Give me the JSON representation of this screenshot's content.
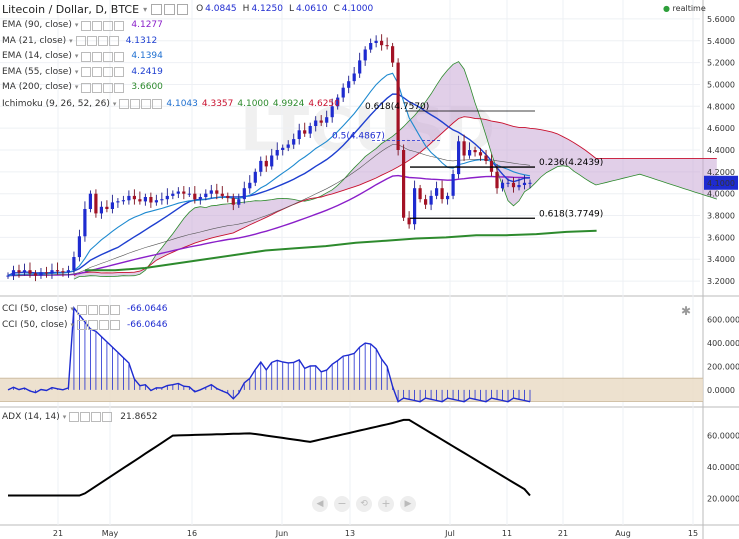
{
  "header": {
    "symbol": "Litecoin / Dollar, D, BTCE",
    "ohlc": [
      {
        "k": "O",
        "v": "4.0845"
      },
      {
        "k": "H",
        "v": "4.1250"
      },
      {
        "k": "L",
        "v": "4.0610"
      },
      {
        "k": "C",
        "v": "4.1000"
      }
    ],
    "realtime": "realtime",
    "realtime_color": "#2e9f3a"
  },
  "indicators": [
    {
      "label": "EMA (90, close)",
      "value": "4.1277",
      "color": "#8a1fc9"
    },
    {
      "label": "MA (21, close)",
      "value": "4.1312",
      "color": "#1e3fd0"
    },
    {
      "label": "EMA (14, close)",
      "value": "4.1394",
      "color": "#1e6fd0"
    },
    {
      "label": "EMA (55, close)",
      "value": "4.2419",
      "color": "#1e3fd0"
    },
    {
      "label": "MA (200, close)",
      "value": "3.6600",
      "color": "#2d8a2d"
    }
  ],
  "ichimoku": {
    "label": "Ichimoku (9, 26, 52, 26)",
    "values": [
      {
        "v": "4.1043",
        "color": "#1e6fd0"
      },
      {
        "v": "4.3357",
        "color": "#c8102e"
      },
      {
        "v": "4.1000",
        "color": "#2d8a2d"
      },
      {
        "v": "4.9924",
        "color": "#2d8a2d"
      },
      {
        "v": "4.6250",
        "color": "#c8102e"
      }
    ]
  },
  "fib_labels": [
    {
      "text": "0.618(4.7570)",
      "value": 4.757
    },
    {
      "text": "0.5(4.4867)",
      "value": 4.4867
    },
    {
      "text": "0.236(4.2439)",
      "value": 4.2439
    },
    {
      "text": "0.618(3.7749)",
      "value": 3.7749
    }
  ],
  "last_price": "4.1000",
  "cci": {
    "labels": [
      "CCI (50, close)",
      "CCI (50, close)"
    ],
    "values": [
      "-66.0646",
      "-66.0646"
    ],
    "color": "#1e2bd0"
  },
  "adx": {
    "label": "ADX (14, 14)",
    "value": "21.8652"
  },
  "x_ticks": [
    "21",
    "May",
    "16",
    "Jun",
    "13",
    "Jul",
    "11",
    "21",
    "Aug",
    "15"
  ],
  "chart_data": [
    {
      "type": "candlestick",
      "title": "Litecoin / Dollar, D, BTCE",
      "ylim": [
        3.1,
        5.7
      ],
      "y_ticks": [
        "5.6000",
        "5.4000",
        "5.2000",
        "5.0000",
        "4.8000",
        "4.6000",
        "4.4000",
        "4.2000",
        "4.0000",
        "3.8000",
        "3.6000",
        "3.4000",
        "3.2000"
      ],
      "price_close": [
        3.25,
        3.3,
        3.28,
        3.3,
        3.27,
        3.25,
        3.28,
        3.27,
        3.3,
        3.29,
        3.28,
        3.3,
        3.42,
        3.61,
        3.86,
        4.0,
        3.82,
        3.88,
        3.86,
        3.92,
        3.93,
        3.94,
        3.98,
        3.95,
        3.93,
        3.97,
        3.92,
        3.94,
        3.95,
        3.98,
        4.0,
        4.02,
        4.0,
        4.0,
        3.95,
        3.97,
        4.0,
        4.03,
        4.0,
        3.98,
        3.96,
        3.9,
        3.95,
        4.05,
        4.1,
        4.2,
        4.3,
        4.25,
        4.35,
        4.4,
        4.42,
        4.45,
        4.5,
        4.58,
        4.55,
        4.62,
        4.67,
        4.65,
        4.7,
        4.8,
        4.88,
        4.97,
        5.03,
        5.1,
        5.22,
        5.32,
        5.38,
        5.4,
        5.36,
        5.35,
        5.2,
        4.4,
        3.78,
        3.72,
        4.05,
        3.95,
        3.9,
        3.98,
        4.05,
        3.95,
        3.98,
        4.18,
        4.48,
        4.35,
        4.4,
        4.38,
        4.35,
        4.3,
        4.2,
        4.05,
        4.1,
        4.1,
        4.06,
        4.08,
        4.1,
        4.1
      ],
      "ma200": [
        3.3,
        3.3,
        3.32,
        3.36,
        3.4,
        3.44,
        3.48,
        3.5,
        3.52,
        3.55,
        3.57,
        3.59,
        3.6,
        3.62,
        3.62,
        3.63,
        3.65,
        3.66
      ],
      "fib_levels": [
        4.757,
        4.4867,
        4.2439,
        3.7749
      ]
    },
    {
      "type": "line",
      "title": "CCI (50, close)",
      "ylim": [
        -120,
        750
      ],
      "y_ticks": [
        "600.0000",
        "400.0000",
        "200.0000",
        "0.0000"
      ],
      "last": -66.0646
    },
    {
      "type": "line",
      "title": "ADX (14, 14)",
      "ylim": [
        5,
        75
      ],
      "y_ticks": [
        "60.0000",
        "40.0000",
        "20.0000"
      ],
      "last": 21.8652
    }
  ]
}
